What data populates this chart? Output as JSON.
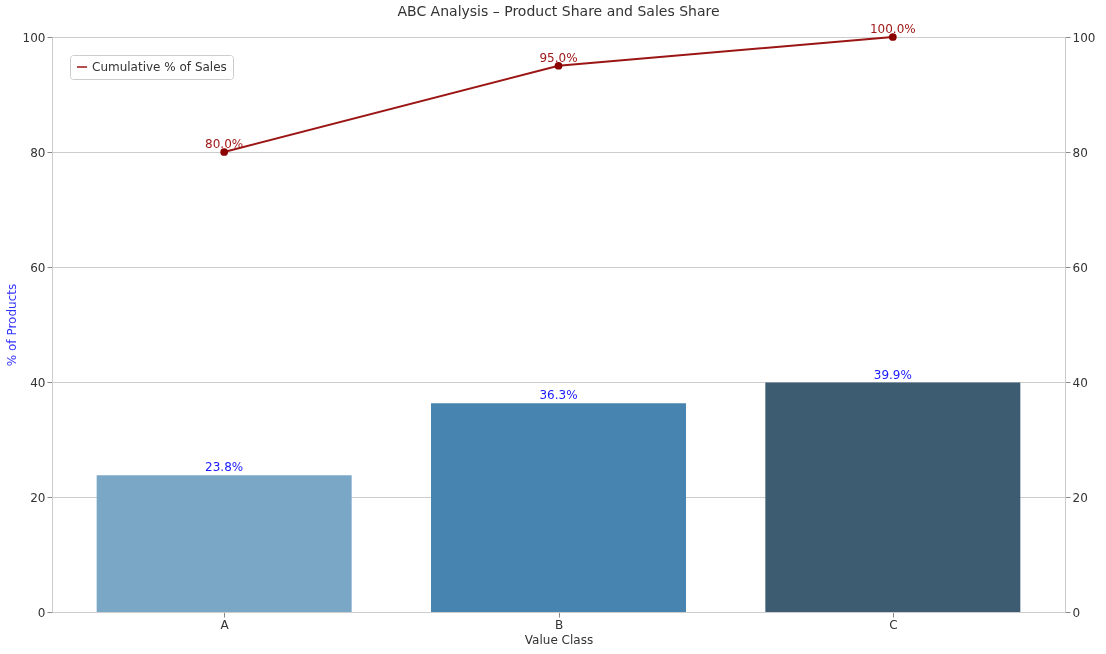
{
  "chart_data": {
    "type": "bar",
    "title": "ABC Analysis – Product Share and Sales Share",
    "xlabel": "Value Class",
    "ylabel": "% of Products",
    "categories": [
      "A",
      "B",
      "C"
    ],
    "ylim": [
      0,
      100
    ],
    "yticks": [
      0,
      20,
      40,
      60,
      80,
      100
    ],
    "y2lim": [
      0,
      100
    ],
    "y2ticks": [
      0,
      20,
      40,
      60,
      80,
      100
    ],
    "grid": "y",
    "legend": "top left",
    "series": [
      {
        "colors": [
          "#7ba7c7",
          "#4884b0",
          "#3d5c72"
        ],
        "values": [
          23.8,
          36.3,
          39.9
        ],
        "value_labels": [
          "23.8%",
          "36.3%",
          "39.9%"
        ]
      },
      {
        "type": "line",
        "name": "Cumulative % of Sales",
        "color": "#9b1515",
        "axis": "y2",
        "marker": "circle",
        "values": [
          80.0,
          95.0,
          100.0
        ],
        "value_labels": [
          "80.0%",
          "95.0%",
          "100.0%"
        ]
      }
    ]
  }
}
